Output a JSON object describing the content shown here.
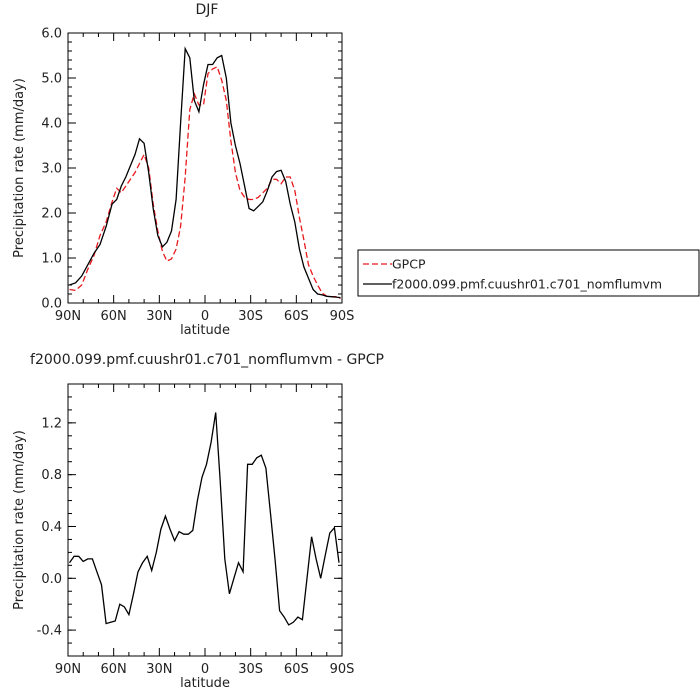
{
  "chart_data": [
    {
      "type": "line",
      "title": "DJF",
      "xlabel": "latitude",
      "ylabel": "Precipitation rate (mm/day)",
      "xlim": [
        -90,
        90
      ],
      "ylim": [
        0,
        6
      ],
      "x_ticks": [
        -90,
        -60,
        -30,
        0,
        30,
        60,
        90
      ],
      "x_tick_labels": [
        "90N",
        "60N",
        "30N",
        "0",
        "30S",
        "60S",
        "90S"
      ],
      "y_ticks": [
        0,
        1,
        2,
        3,
        4,
        5,
        6
      ],
      "y_tick_labels": [
        "0.0",
        "1.0",
        "2.0",
        "3.0",
        "4.0",
        "5.0",
        "6.0"
      ],
      "legend_position": "right",
      "series": [
        {
          "name": "GPCP",
          "color": "#e8191c",
          "dash": "dashed",
          "x": [
            -89,
            -85,
            -81,
            -77,
            -73,
            -69,
            -65,
            -61,
            -58,
            -55,
            -52,
            -49,
            -46,
            -43,
            -40,
            -37,
            -34,
            -31,
            -28,
            -25,
            -22,
            -19,
            -16,
            -13,
            -10,
            -7,
            -4,
            -1,
            2,
            5,
            8,
            11,
            14,
            17,
            20,
            23,
            26,
            29,
            32,
            35,
            38,
            41,
            44,
            47,
            50,
            53,
            56,
            59,
            62,
            65,
            68,
            71,
            74,
            77,
            80,
            83,
            86,
            89
          ],
          "values": [
            0.3,
            0.28,
            0.4,
            0.75,
            1.05,
            1.5,
            1.8,
            2.25,
            2.55,
            2.45,
            2.6,
            2.75,
            2.9,
            3.1,
            3.3,
            3.0,
            2.2,
            1.6,
            1.15,
            0.93,
            0.98,
            1.2,
            1.7,
            2.8,
            4.3,
            4.65,
            4.4,
            4.4,
            5.1,
            5.2,
            5.25,
            4.95,
            4.5,
            3.6,
            2.9,
            2.5,
            2.35,
            2.3,
            2.3,
            2.35,
            2.45,
            2.55,
            2.75,
            2.75,
            2.65,
            2.8,
            2.8,
            2.5,
            1.9,
            1.4,
            0.85,
            0.6,
            0.4,
            0.22,
            0.15,
            0.14,
            0.14,
            0.1
          ]
        },
        {
          "name": "f2000.099.pmf.cuushr01.c701_nomflumvm",
          "color": "#000000",
          "dash": "solid",
          "x": [
            -89,
            -85,
            -81,
            -77,
            -73,
            -69,
            -65,
            -61,
            -58,
            -55,
            -52,
            -49,
            -46,
            -43,
            -40,
            -37,
            -34,
            -31,
            -28,
            -25,
            -22,
            -19,
            -16,
            -13,
            -10,
            -7,
            -4,
            -1,
            2,
            5,
            8,
            11,
            14,
            17,
            20,
            23,
            26,
            29,
            32,
            35,
            38,
            41,
            44,
            47,
            50,
            53,
            56,
            59,
            62,
            65,
            68,
            71,
            74,
            77,
            80,
            83,
            86,
            89
          ],
          "values": [
            0.4,
            0.45,
            0.6,
            0.85,
            1.1,
            1.3,
            1.7,
            2.2,
            2.3,
            2.6,
            2.8,
            3.05,
            3.3,
            3.65,
            3.55,
            2.9,
            2.1,
            1.5,
            1.25,
            1.35,
            1.6,
            2.3,
            4.0,
            5.65,
            5.45,
            4.5,
            4.25,
            4.85,
            5.3,
            5.3,
            5.45,
            5.5,
            5.0,
            4.0,
            3.5,
            3.1,
            2.6,
            2.1,
            2.05,
            2.15,
            2.25,
            2.5,
            2.8,
            2.92,
            2.95,
            2.7,
            2.2,
            1.8,
            1.2,
            0.8,
            0.55,
            0.3,
            0.2,
            0.18,
            0.15,
            0.14,
            0.13,
            0.12
          ]
        }
      ]
    },
    {
      "type": "line",
      "title": "f2000.099.pmf.cuushr01.c701_nomflumvm - GPCP",
      "xlabel": "latitude",
      "ylabel": "Precipitation rate (mm/day)",
      "xlim": [
        -90,
        90
      ],
      "ylim": [
        -0.6,
        1.5
      ],
      "x_ticks": [
        -90,
        -60,
        -30,
        0,
        30,
        60,
        90
      ],
      "x_tick_labels": [
        "90N",
        "60N",
        "30N",
        "0",
        "30S",
        "60S",
        "90S"
      ],
      "y_ticks": [
        -0.4,
        0,
        0.4,
        0.8,
        1.2
      ],
      "y_tick_labels": [
        "-0.4",
        "0.0",
        "0.4",
        "0.8",
        "1.2"
      ],
      "series": [
        {
          "color": "#000000",
          "dash": "solid",
          "x": [
            -89,
            -86,
            -83,
            -80,
            -77,
            -74,
            -71,
            -68,
            -65,
            -62,
            -59,
            -56,
            -53,
            -50,
            -47,
            -44,
            -41,
            -38,
            -35,
            -32,
            -29,
            -26,
            -23,
            -20,
            -17,
            -14,
            -11,
            -8,
            -5,
            -2,
            1,
            4,
            7,
            10,
            13,
            16,
            19,
            22,
            25,
            28,
            31,
            34,
            37,
            40,
            43,
            46,
            49,
            52,
            55,
            58,
            61,
            64,
            67,
            70,
            73,
            76,
            79,
            82,
            85,
            88
          ],
          "values": [
            0.12,
            0.17,
            0.17,
            0.13,
            0.15,
            0.15,
            0.05,
            -0.05,
            -0.35,
            -0.34,
            -0.33,
            -0.2,
            -0.22,
            -0.28,
            -0.12,
            0.05,
            0.12,
            0.17,
            0.06,
            0.2,
            0.38,
            0.48,
            0.38,
            0.29,
            0.36,
            0.34,
            0.34,
            0.37,
            0.6,
            0.78,
            0.88,
            1.05,
            1.28,
            0.75,
            0.15,
            -0.12,
            0.0,
            0.12,
            0.05,
            0.88,
            0.88,
            0.93,
            0.95,
            0.85,
            0.5,
            0.15,
            -0.25,
            -0.3,
            -0.36,
            -0.34,
            -0.3,
            -0.32,
            0.0,
            0.32,
            0.15,
            0.0,
            0.18,
            0.35,
            0.39,
            0.12
          ]
        }
      ]
    }
  ]
}
